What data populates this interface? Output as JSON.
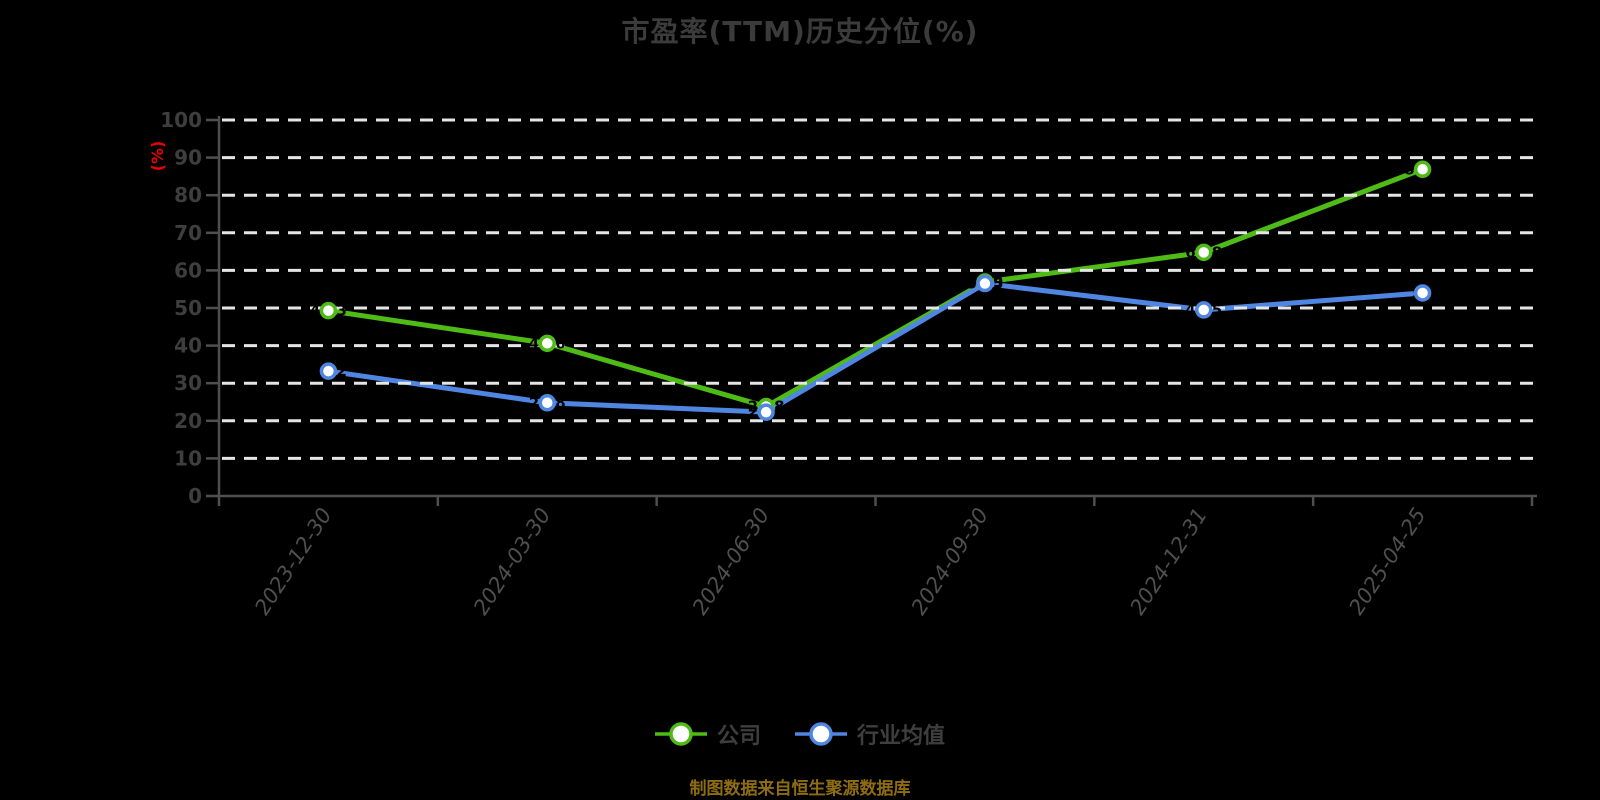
{
  "title": "市盈率(TTM)历史分位(%)",
  "footer": "制图数据来自恒生聚源数据库",
  "colors": {
    "background": "#000000",
    "title_text": "#3b3b3b",
    "axis_text": "#3e3e3e",
    "date_text": "#4f4f4f",
    "axis_line": "#4f4f4f",
    "gridline": "#e5e5e5",
    "unit_label": "#ee0000",
    "footer_text": "#8e6d12",
    "data_label": "#000000",
    "marker_fill": "#ffffff"
  },
  "chart_data": {
    "type": "line",
    "title": "市盈率(TTM)历史分位(%)",
    "ylabel": "(%)",
    "xlabel": "",
    "ylim": [
      0,
      100
    ],
    "y_tick_step": 10,
    "y_ticks": [
      0,
      10,
      20,
      30,
      40,
      50,
      60,
      70,
      80,
      90,
      100
    ],
    "grid": "horizontal-dashed",
    "legend_position": "bottom",
    "categories": [
      "2023-12-30",
      "2024-03-30",
      "2024-06-30",
      "2024-09-30",
      "2024-12-31",
      "2025-04-25"
    ],
    "series": [
      {
        "name": "公司",
        "color": "#4fbb17",
        "values": [
          49.3,
          40.6,
          23.8,
          56.9,
          64.8,
          86.9
        ]
      },
      {
        "name": "行业均值",
        "color": "#4e86e2",
        "values": [
          33.2,
          24.8,
          22.3,
          56.5,
          49.5,
          54.0
        ]
      }
    ]
  }
}
